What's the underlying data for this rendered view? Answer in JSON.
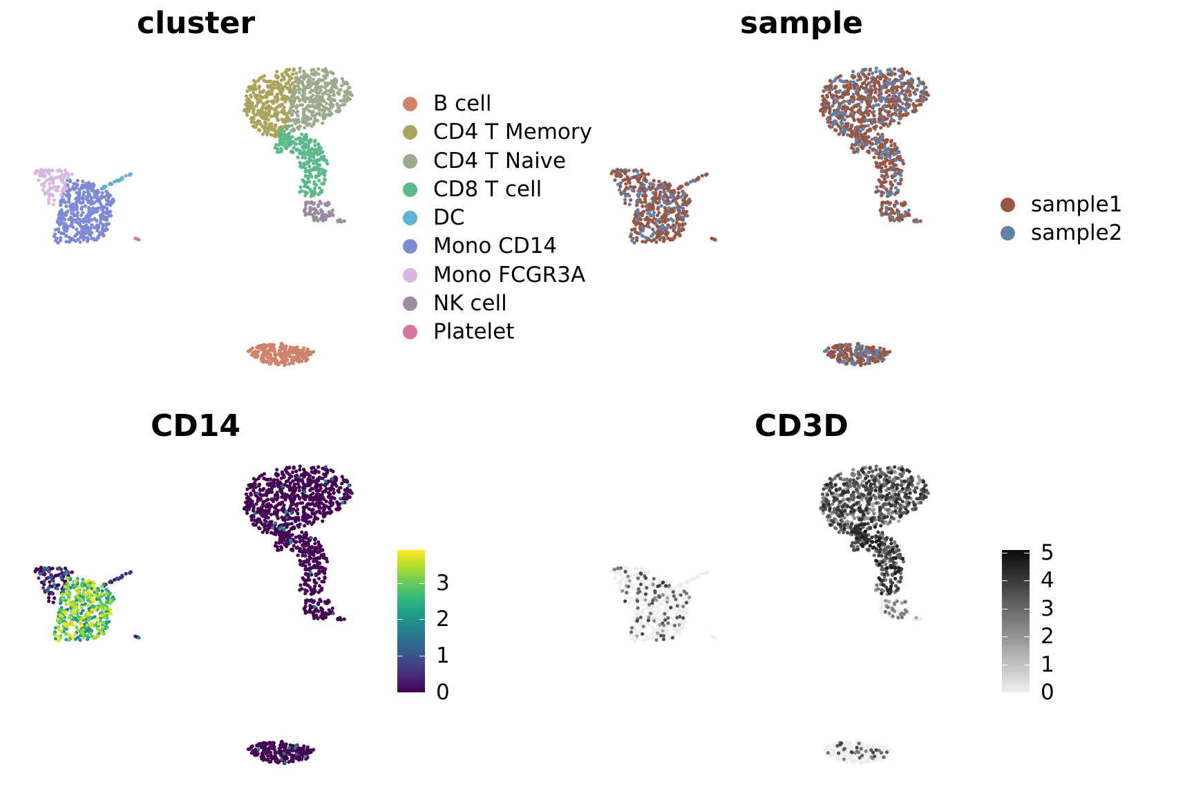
{
  "panels": [
    {
      "id": "cluster",
      "title": "cluster",
      "type": "categorical"
    },
    {
      "id": "sample",
      "title": "sample",
      "type": "categorical"
    },
    {
      "id": "cd14",
      "title": "CD14",
      "type": "continuous"
    },
    {
      "id": "cd3d",
      "title": "CD3D",
      "type": "continuous"
    }
  ],
  "legend_cluster": [
    {
      "label": "B cell",
      "color": "#D0836B"
    },
    {
      "label": "CD4 T Memory",
      "color": "#AAA45C"
    },
    {
      "label": "CD4 T Naive",
      "color": "#9CAB8E"
    },
    {
      "label": "CD8 T cell",
      "color": "#5DB98C"
    },
    {
      "label": "DC",
      "color": "#5FB3CC"
    },
    {
      "label": "Mono CD14",
      "color": "#7F8AD6"
    },
    {
      "label": "Mono FCGR3A",
      "color": "#D7B8E2"
    },
    {
      "label": "NK cell",
      "color": "#9A8BA0"
    },
    {
      "label": "Platelet",
      "color": "#D676A0"
    }
  ],
  "legend_sample": [
    {
      "label": "sample1",
      "color": "#9B5641"
    },
    {
      "label": "sample2",
      "color": "#6480A4"
    }
  ],
  "colorbar_cd14": {
    "ticks": [
      "0",
      "1",
      "2",
      "3"
    ],
    "max": 3.9,
    "palette": "viridis"
  },
  "colorbar_cd3d": {
    "ticks": [
      "0",
      "1",
      "2",
      "3",
      "4",
      "5"
    ],
    "max": 5.1,
    "palette": "greys"
  },
  "chart_data": [
    {
      "type": "scatter",
      "title": "cluster",
      "xlabel": "",
      "ylabel": "",
      "grid": false,
      "legend_position": "right",
      "series": [
        {
          "name": "B cell",
          "color": "#D0836B"
        },
        {
          "name": "CD4 T Memory",
          "color": "#AAA45C"
        },
        {
          "name": "CD4 T Naive",
          "color": "#9CAB8E"
        },
        {
          "name": "CD8 T cell",
          "color": "#5DB98C"
        },
        {
          "name": "DC",
          "color": "#5FB3CC"
        },
        {
          "name": "Mono CD14",
          "color": "#7F8AD6"
        },
        {
          "name": "Mono FCGR3A",
          "color": "#D7B8E2"
        },
        {
          "name": "NK cell",
          "color": "#9A8BA0"
        },
        {
          "name": "Platelet",
          "color": "#D676A0"
        }
      ]
    },
    {
      "type": "scatter",
      "title": "sample",
      "xlabel": "",
      "ylabel": "",
      "grid": false,
      "legend_position": "right",
      "series": [
        {
          "name": "sample1",
          "color": "#9B5641"
        },
        {
          "name": "sample2",
          "color": "#6480A4"
        }
      ]
    },
    {
      "type": "scatter",
      "title": "CD14",
      "xlabel": "",
      "ylabel": "",
      "grid": false,
      "legend_position": "right",
      "color_scale": {
        "palette": "viridis",
        "range": [
          0,
          3.9
        ],
        "ticks": [
          0,
          1,
          2,
          3
        ]
      }
    },
    {
      "type": "scatter",
      "title": "CD3D",
      "xlabel": "",
      "ylabel": "",
      "grid": false,
      "legend_position": "right",
      "color_scale": {
        "palette": "greys",
        "range": [
          0,
          5.1
        ],
        "ticks": [
          0,
          1,
          2,
          3,
          4,
          5
        ]
      }
    }
  ]
}
